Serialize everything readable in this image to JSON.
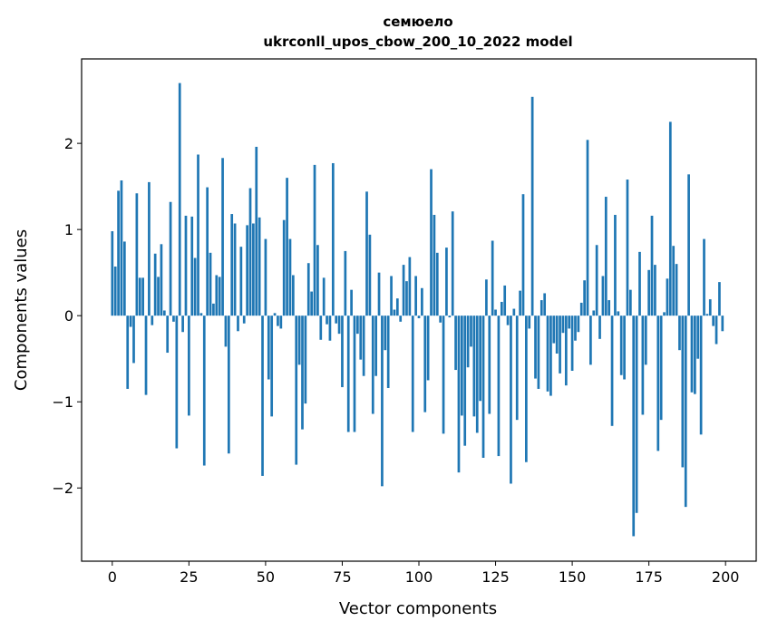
{
  "chart_data": {
    "type": "bar",
    "title": [
      "семюело",
      "ukrconll_upos_cbow_200_10_2022 model"
    ],
    "xlabel": "Vector components",
    "ylabel": "Components values",
    "xlim": [
      -10,
      210
    ],
    "ylim": [
      -2.85,
      2.98
    ],
    "x_ticks": [
      0,
      25,
      50,
      75,
      100,
      125,
      150,
      175,
      200
    ],
    "x_tick_labels": [
      "0",
      "25",
      "50",
      "75",
      "100",
      "125",
      "150",
      "175",
      "200"
    ],
    "y_ticks": [
      -2,
      -1,
      0,
      1,
      2
    ],
    "y_tick_labels": [
      "−2",
      "−1",
      "0",
      "1",
      "2"
    ],
    "grid": false,
    "legend": "none",
    "bar_color": "#1f77b4",
    "x": [
      0,
      1,
      2,
      3,
      4,
      5,
      6,
      7,
      8,
      9,
      10,
      11,
      12,
      13,
      14,
      15,
      16,
      17,
      18,
      19,
      20,
      21,
      22,
      23,
      24,
      25,
      26,
      27,
      28,
      29,
      30,
      31,
      32,
      33,
      34,
      35,
      36,
      37,
      38,
      39,
      40,
      41,
      42,
      43,
      44,
      45,
      46,
      47,
      48,
      49,
      50,
      51,
      52,
      53,
      54,
      55,
      56,
      57,
      58,
      59,
      60,
      61,
      62,
      63,
      64,
      65,
      66,
      67,
      68,
      69,
      70,
      71,
      72,
      73,
      74,
      75,
      76,
      77,
      78,
      79,
      80,
      81,
      82,
      83,
      84,
      85,
      86,
      87,
      88,
      89,
      90,
      91,
      92,
      93,
      94,
      95,
      96,
      97,
      98,
      99,
      100,
      101,
      102,
      103,
      104,
      105,
      106,
      107,
      108,
      109,
      110,
      111,
      112,
      113,
      114,
      115,
      116,
      117,
      118,
      119,
      120,
      121,
      122,
      123,
      124,
      125,
      126,
      127,
      128,
      129,
      130,
      131,
      132,
      133,
      134,
      135,
      136,
      137,
      138,
      139,
      140,
      141,
      142,
      143,
      144,
      145,
      146,
      147,
      148,
      149,
      150,
      151,
      152,
      153,
      154,
      155,
      156,
      157,
      158,
      159,
      160,
      161,
      162,
      163,
      164,
      165,
      166,
      167,
      168,
      169,
      170,
      171,
      172,
      173,
      174,
      175,
      176,
      177,
      178,
      179,
      180,
      181,
      182,
      183,
      184,
      185,
      186,
      187,
      188,
      189,
      190,
      191,
      192,
      193,
      194,
      195,
      196,
      197,
      198,
      199
    ],
    "values": [
      0.98,
      0.57,
      1.45,
      1.57,
      0.86,
      -0.85,
      -0.13,
      -0.55,
      1.42,
      0.44,
      0.44,
      -0.92,
      1.55,
      -0.11,
      0.72,
      0.45,
      0.83,
      0.06,
      -0.43,
      1.32,
      -0.07,
      -1.54,
      2.7,
      -0.19,
      1.16,
      -1.16,
      1.15,
      0.67,
      1.87,
      0.03,
      -1.74,
      1.49,
      0.73,
      0.14,
      0.47,
      0.45,
      1.83,
      -0.36,
      -1.6,
      1.18,
      1.07,
      -0.18,
      0.8,
      -0.09,
      1.05,
      1.48,
      1.07,
      1.96,
      1.14,
      -1.86,
      0.89,
      -0.74,
      -1.17,
      0.03,
      -0.12,
      -0.15,
      1.11,
      1.6,
      0.89,
      0.47,
      -1.73,
      -0.57,
      -1.32,
      -1.02,
      0.61,
      0.28,
      1.75,
      0.82,
      -0.28,
      0.44,
      -0.1,
      -0.29,
      1.77,
      -0.09,
      -0.21,
      -0.83,
      0.75,
      -1.35,
      0.3,
      -1.35,
      -0.21,
      -0.51,
      -0.7,
      1.44,
      0.94,
      -1.14,
      -0.7,
      0.5,
      -1.98,
      -0.4,
      -0.84,
      0.46,
      0.07,
      0.2,
      -0.07,
      0.59,
      0.4,
      0.68,
      -1.35,
      0.46,
      -0.03,
      0.32,
      -1.12,
      -0.75,
      1.7,
      1.17,
      0.73,
      -0.08,
      -1.37,
      0.79,
      -0.02,
      1.21,
      -0.63,
      -1.82,
      -1.16,
      -1.51,
      -0.6,
      -0.36,
      -1.17,
      -1.36,
      -0.99,
      -1.65,
      0.42,
      -1.14,
      0.87,
      0.07,
      -1.63,
      0.16,
      0.35,
      -0.11,
      -1.95,
      0.08,
      -1.21,
      0.29,
      1.41,
      -1.7,
      -0.15,
      2.54,
      -0.73,
      -0.85,
      0.18,
      0.26,
      -0.88,
      -0.93,
      -0.32,
      -0.44,
      -0.67,
      -0.2,
      -0.81,
      -0.15,
      -0.64,
      -0.29,
      -0.19,
      0.15,
      0.41,
      2.04,
      -0.57,
      0.06,
      0.82,
      -0.27,
      0.46,
      1.38,
      0.18,
      -1.28,
      1.17,
      0.05,
      -0.69,
      -0.74,
      1.58,
      0.3,
      -2.56,
      -2.29,
      0.74,
      -1.15,
      -0.57,
      0.53,
      1.16,
      0.59,
      -1.57,
      -1.21,
      0.04,
      0.43,
      2.25,
      0.81,
      0.6,
      -0.4,
      -1.76,
      -2.22,
      1.64,
      -0.89,
      -0.91,
      -0.5,
      -1.38,
      0.89,
      0.02,
      0.19,
      -0.12,
      -0.33,
      0.39,
      -0.18
    ]
  }
}
